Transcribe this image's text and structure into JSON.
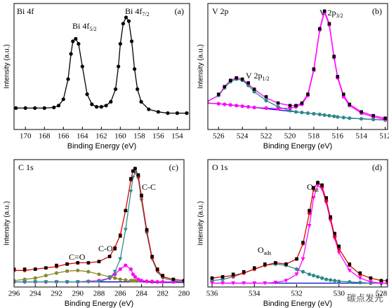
{
  "chart_data": [
    {
      "type": "line",
      "xlabel": "Binding Energy (eV)",
      "ylabel": "Intensity (a.u.)",
      "xlim": [
        171.2,
        152.7
      ],
      "xticks": [
        170,
        168,
        166,
        164,
        162,
        160,
        158,
        156,
        154
      ],
      "ylim": [
        0,
        100
      ],
      "annotations": [
        {
          "text": "Bi 4f"
        },
        {
          "text": "(a)"
        },
        {
          "text": "Bi 4f",
          "sub": "5/2"
        },
        {
          "text": "Bi 4f",
          "sub": "7/2"
        }
      ],
      "x": [
        171,
        170,
        169,
        168,
        167,
        166.5,
        166,
        165.5,
        165.2,
        165,
        164.7,
        164.4,
        164,
        163.5,
        163,
        162.5,
        162,
        161.5,
        161,
        160.5,
        160.2,
        160,
        159.7,
        159.4,
        159.1,
        158.8,
        158.5,
        158.2,
        157.8,
        157,
        156,
        155,
        154,
        153
      ],
      "series": [
        {
          "color": "#000000",
          "line": true,
          "marker": "circle",
          "values": [
            17,
            17,
            17,
            17,
            17.5,
            19,
            24,
            40,
            60,
            70,
            72,
            68,
            50,
            28,
            20,
            18,
            18,
            19,
            22,
            32,
            50,
            68,
            84,
            89,
            86,
            70,
            48,
            32,
            22,
            16,
            14,
            13,
            13,
            13
          ]
        }
      ]
    },
    {
      "type": "line",
      "xlabel": "Binding Energy (eV)",
      "ylabel": "Intensity (a.u.)",
      "xlim": [
        526.9,
        511.8
      ],
      "xticks": [
        526,
        524,
        522,
        520,
        518,
        516,
        514,
        512
      ],
      "ylim": [
        0,
        100
      ],
      "annotations": [
        {
          "text": "V 2p"
        },
        {
          "text": "(b)"
        },
        {
          "text": "V 2p",
          "sub": "1/2"
        },
        {
          "text": "V 2p",
          "sub": "3/2"
        }
      ],
      "x": [
        527,
        526,
        525.5,
        525,
        524.5,
        524,
        523.5,
        523,
        522,
        521,
        520,
        519.5,
        519,
        518.5,
        518,
        517.5,
        517.1,
        516.7,
        516.3,
        516,
        515.5,
        515,
        514,
        513,
        512
      ],
      "series": [
        {
          "color": "#0000cc",
          "line": true,
          "values": [
            21,
            20.5,
            20,
            19.5,
            19,
            18.5,
            18,
            17.5,
            16.5,
            15.5,
            14.5,
            14,
            13.5,
            13,
            12.5,
            12,
            11.5,
            11,
            10.5,
            10,
            9.5,
            9,
            8.5,
            8,
            7.5
          ]
        },
        {
          "color": "#2a8a8a",
          "line": true,
          "marker": "circle",
          "values": [
            22,
            27,
            33,
            38,
            40,
            39,
            35,
            30,
            23,
            18,
            15,
            14,
            13.5,
            13,
            12.5,
            12,
            11.5,
            11,
            10.5,
            10,
            9.5,
            9,
            8.5,
            8,
            7.5
          ]
        },
        {
          "color": "#ff00ff",
          "line": true,
          "marker": "circle",
          "values": [
            21,
            20.5,
            20,
            19.5,
            19,
            18.5,
            18,
            17.5,
            17,
            16.5,
            17,
            18,
            20,
            27,
            47,
            79,
            93,
            83,
            57,
            41,
            26,
            19,
            13,
            10,
            8
          ]
        },
        {
          "color": "#ff00ff",
          "line": true,
          "values": [
            22,
            27,
            34,
            39,
            41,
            40,
            36,
            32,
            25,
            21,
            19,
            19,
            21,
            28,
            48,
            80,
            94,
            84,
            58,
            42,
            27,
            20,
            14,
            11,
            9
          ]
        },
        {
          "color": "#000000",
          "marker": "square",
          "values": [
            22,
            28,
            34,
            39,
            41,
            40,
            37,
            32,
            26,
            21,
            19,
            19,
            21,
            28,
            48,
            80,
            94,
            84,
            58,
            42,
            28,
            20,
            14,
            11,
            9
          ]
        }
      ]
    },
    {
      "type": "line",
      "xlabel": "Binding Energy (eV)",
      "ylabel": "Intensity (a.u.)",
      "xlim": [
        296,
        280
      ],
      "xticks": [
        296,
        294,
        292,
        290,
        288,
        286,
        284,
        282,
        280
      ],
      "ylim": [
        0,
        100
      ],
      "annotations": [
        {
          "text": "C 1s"
        },
        {
          "text": "(c)"
        },
        {
          "text": "C-C"
        },
        {
          "text": "C-O"
        },
        {
          "text": "C=O"
        }
      ],
      "x": [
        296,
        295,
        294,
        293,
        292,
        291,
        290,
        289,
        288,
        287,
        286.5,
        286,
        285.5,
        285,
        284.8,
        284.6,
        284.3,
        284,
        283.5,
        283,
        282.5,
        282,
        281,
        280
      ],
      "series": [
        {
          "color": "#0000cc",
          "line": true,
          "values": [
            4,
            4,
            4,
            4,
            4,
            4,
            4,
            4,
            4,
            4,
            4,
            4,
            4,
            4,
            4,
            4,
            4,
            4,
            4,
            3.5,
            3.5,
            3.5,
            3.5,
            3.5
          ]
        },
        {
          "color": "#8a8a2a",
          "line": true,
          "marker": "circle",
          "values": [
            5,
            6,
            7,
            9,
            11,
            12.5,
            13,
            12,
            10,
            8,
            7,
            6,
            5.5,
            5,
            5,
            5,
            5,
            5,
            4.5,
            4.5,
            4,
            4,
            4,
            4
          ]
        },
        {
          "color": "#ff00ff",
          "line": true,
          "marker": "circle",
          "values": [
            4,
            4,
            4,
            4,
            4,
            4,
            4,
            4.5,
            5,
            7,
            10,
            14,
            17,
            14,
            10,
            8,
            6,
            5,
            4.5,
            4,
            4,
            4,
            4,
            4
          ]
        },
        {
          "color": "#2a9090",
          "line": true,
          "marker": "triangle",
          "values": [
            4,
            4,
            4,
            4,
            4,
            4,
            4,
            4,
            4,
            7,
            12,
            22,
            45,
            75,
            86,
            90,
            85,
            68,
            42,
            22,
            12,
            7,
            5,
            4
          ]
        },
        {
          "color": "#e00000",
          "line": true,
          "marker": "circle",
          "values": [
            13,
            13,
            14,
            15,
            16,
            18,
            19,
            19,
            20,
            24,
            31,
            41,
            60,
            84,
            91,
            93,
            87,
            71,
            44,
            23,
            13,
            8,
            6,
            5
          ]
        },
        {
          "color": "#000000",
          "marker": "square",
          "values": [
            14,
            14,
            14,
            15,
            17,
            18,
            19,
            19,
            20,
            24,
            30,
            40,
            60,
            85,
            91,
            93,
            88,
            72,
            45,
            24,
            14,
            9,
            6,
            5
          ]
        }
      ]
    },
    {
      "type": "line",
      "xlabel": "Binding Energy (eV)",
      "ylabel": "Intensity (a.u.)",
      "xlim": [
        536.2,
        527.7
      ],
      "xticks": [
        536,
        534,
        532,
        530,
        528
      ],
      "ylim": [
        0,
        100
      ],
      "annotations": [
        {
          "text": "O 1s"
        },
        {
          "text": "(d)"
        },
        {
          "text": "O",
          "sub": "lat"
        },
        {
          "text": "O",
          "sub": "ads"
        }
      ],
      "x": [
        536,
        535.5,
        535,
        534.5,
        534,
        533.5,
        533,
        532.5,
        532,
        531.7,
        531.4,
        531.2,
        531,
        530.8,
        530.6,
        530.4,
        530.2,
        530,
        529.5,
        529,
        528.5,
        528,
        527.7
      ],
      "series": [
        {
          "color": "#0000cc",
          "line": true,
          "values": [
            3,
            3,
            3,
            3,
            3,
            3,
            3,
            3,
            3,
            3,
            3,
            3,
            3,
            3,
            3,
            3,
            3,
            3,
            3,
            3,
            3,
            3,
            3
          ]
        },
        {
          "color": "#2a8a8a",
          "line": true,
          "marker": "circle",
          "values": [
            5,
            6,
            8,
            11,
            14,
            17,
            18,
            17,
            14,
            12,
            10,
            9,
            8,
            7,
            6,
            5.5,
            5,
            4.5,
            4,
            3.5,
            3,
            3,
            3
          ]
        },
        {
          "color": "#ff00ff",
          "line": true,
          "marker": "triangle",
          "values": [
            3,
            3,
            3,
            3,
            3,
            3,
            3.5,
            5,
            10,
            22,
            48,
            70,
            80,
            77,
            66,
            52,
            38,
            27,
            13,
            7,
            4,
            3,
            3
          ]
        },
        {
          "color": "#e00000",
          "line": true,
          "marker": "circle",
          "values": [
            7,
            8,
            9,
            11,
            14,
            17,
            19,
            18,
            22,
            34,
            58,
            77,
            82,
            79,
            68,
            54,
            40,
            30,
            17,
            10,
            7,
            5,
            5
          ]
        },
        {
          "color": "#000000",
          "marker": "square",
          "values": [
            7,
            8,
            10,
            12,
            15,
            18,
            19,
            18,
            22,
            35,
            60,
            78,
            82,
            80,
            70,
            55,
            42,
            32,
            18,
            11,
            7,
            5,
            5
          ]
        }
      ]
    }
  ],
  "watermark": "碳点发光"
}
